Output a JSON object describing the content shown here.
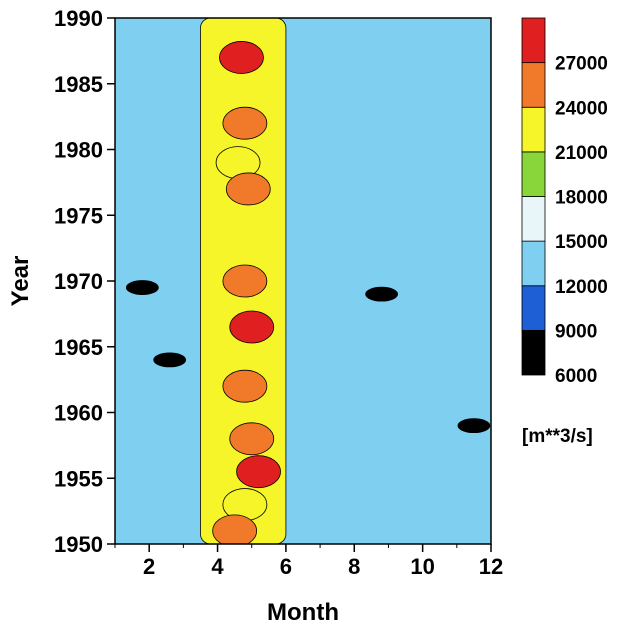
{
  "chart_data": {
    "type": "heatmap",
    "title": "",
    "xlabel": "Month",
    "ylabel": "Year",
    "xlim": [
      1,
      12
    ],
    "ylim": [
      1950,
      1990
    ],
    "x_ticks": [
      2,
      4,
      6,
      8,
      10,
      12
    ],
    "y_ticks": [
      1950,
      1955,
      1960,
      1965,
      1970,
      1975,
      1980,
      1985,
      1990
    ],
    "colorbar": {
      "unit": "[m**3/s]",
      "levels": [
        6000,
        9000,
        12000,
        15000,
        18000,
        21000,
        24000,
        27000
      ],
      "colors": [
        "#000000",
        "#1f5fd6",
        "#7fd0f0",
        "#e8f6fa",
        "#88d63a",
        "#f5f52a",
        "#f07a2a",
        "#e02020"
      ],
      "tick_labels": [
        "6000",
        "9000",
        "12000",
        "15000",
        "18000",
        "21000",
        "24000",
        "27000"
      ]
    },
    "base_level_value": 13500,
    "features": [
      {
        "label": "peak-flow-band",
        "month_range": [
          3.5,
          6
        ],
        "year_range": [
          1950,
          1990
        ],
        "value": 22500
      },
      {
        "label": "high-peak",
        "month": 4.7,
        "year": 1987,
        "value": 27500
      },
      {
        "label": "high-peak",
        "month": 4.8,
        "year": 1982,
        "value": 25000
      },
      {
        "label": "high-peak",
        "month": 4.6,
        "year": 1979,
        "value": 22000
      },
      {
        "label": "high-peak",
        "month": 4.9,
        "year": 1977,
        "value": 24000
      },
      {
        "label": "high-peak",
        "month": 4.8,
        "year": 1970,
        "value": 25000
      },
      {
        "label": "high-peak",
        "month": 5.0,
        "year": 1966.5,
        "value": 27500
      },
      {
        "label": "high-peak",
        "month": 4.8,
        "year": 1962,
        "value": 24500
      },
      {
        "label": "high-peak",
        "month": 5.0,
        "year": 1958,
        "value": 25000
      },
      {
        "label": "high-peak",
        "month": 5.2,
        "year": 1955.5,
        "value": 27500
      },
      {
        "label": "high-peak",
        "month": 4.8,
        "year": 1953,
        "value": 21500
      },
      {
        "label": "high-peak",
        "month": 4.5,
        "year": 1951,
        "value": 24000
      },
      {
        "label": "low-flow",
        "month": 1.8,
        "year": 1969.5,
        "value": 6500
      },
      {
        "label": "low-flow",
        "month": 2.6,
        "year": 1964,
        "value": 7500
      },
      {
        "label": "low-flow",
        "month": 8.8,
        "year": 1969,
        "value": 8000
      },
      {
        "label": "low-flow",
        "month": 11.5,
        "year": 1959,
        "value": 8500
      }
    ]
  }
}
